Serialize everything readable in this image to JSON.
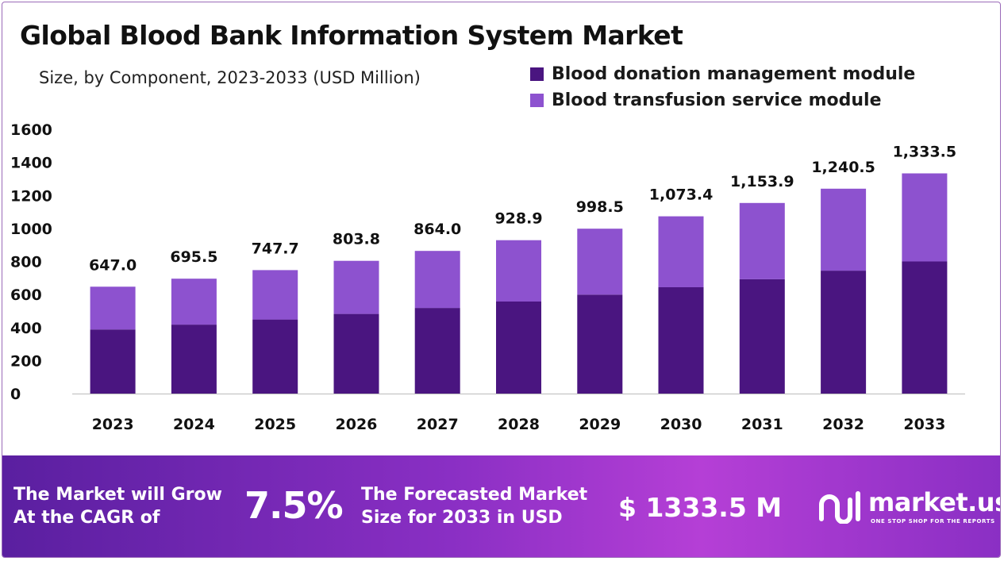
{
  "title": "Global Blood Bank Information System Market",
  "subtitle": "Size, by Component, 2023-2033 (USD Million)",
  "colors": {
    "donation": "#4a1580",
    "transfusion": "#8d52cf",
    "axis": "#bbbbbb"
  },
  "chart_data": {
    "type": "bar",
    "stacked": true,
    "title": "Global Blood Bank Information System Market",
    "subtitle": "Size, by Component, 2023-2033 (USD Million)",
    "categories": [
      "2023",
      "2024",
      "2025",
      "2026",
      "2027",
      "2028",
      "2029",
      "2030",
      "2031",
      "2032",
      "2033"
    ],
    "series": [
      {
        "name": "Blood donation management module",
        "color": "#4a1580",
        "values": [
          388.2,
          417.3,
          448.6,
          482.3,
          518.4,
          557.3,
          599.1,
          644.0,
          692.3,
          744.3,
          800.1
        ]
      },
      {
        "name": "Blood transfusion service module",
        "color": "#8d52cf",
        "values": [
          258.8,
          278.2,
          299.1,
          321.5,
          345.6,
          371.6,
          399.4,
          429.4,
          461.6,
          496.2,
          533.4
        ]
      }
    ],
    "totals": [
      647.0,
      695.5,
      747.7,
      803.8,
      864.0,
      928.9,
      998.5,
      1073.4,
      1153.9,
      1240.5,
      1333.5
    ],
    "total_labels": [
      "647.0",
      "695.5",
      "747.7",
      "803.8",
      "864.0",
      "928.9",
      "998.5",
      "1,073.4",
      "1,153.9",
      "1,240.5",
      "1,333.5"
    ],
    "y_ticks": [
      0,
      200,
      400,
      600,
      800,
      1000,
      1200,
      1400,
      1600
    ],
    "ylim": [
      0,
      1600
    ],
    "xlabel": "",
    "ylabel": "",
    "grid": false,
    "legend_position": "top-right"
  },
  "banner": {
    "cagr_line1": "The Market will Grow",
    "cagr_line2": "At the CAGR of",
    "cagr_value": "7.5%",
    "forecast_line1": "The Forecasted Market",
    "forecast_line2": "Size for 2033 in USD",
    "forecast_value": "$ 1333.5 M",
    "brand_name": "market.us",
    "brand_tagline": "ONE STOP SHOP FOR THE REPORTS",
    "brand_icon": "market-us-logo-icon"
  }
}
